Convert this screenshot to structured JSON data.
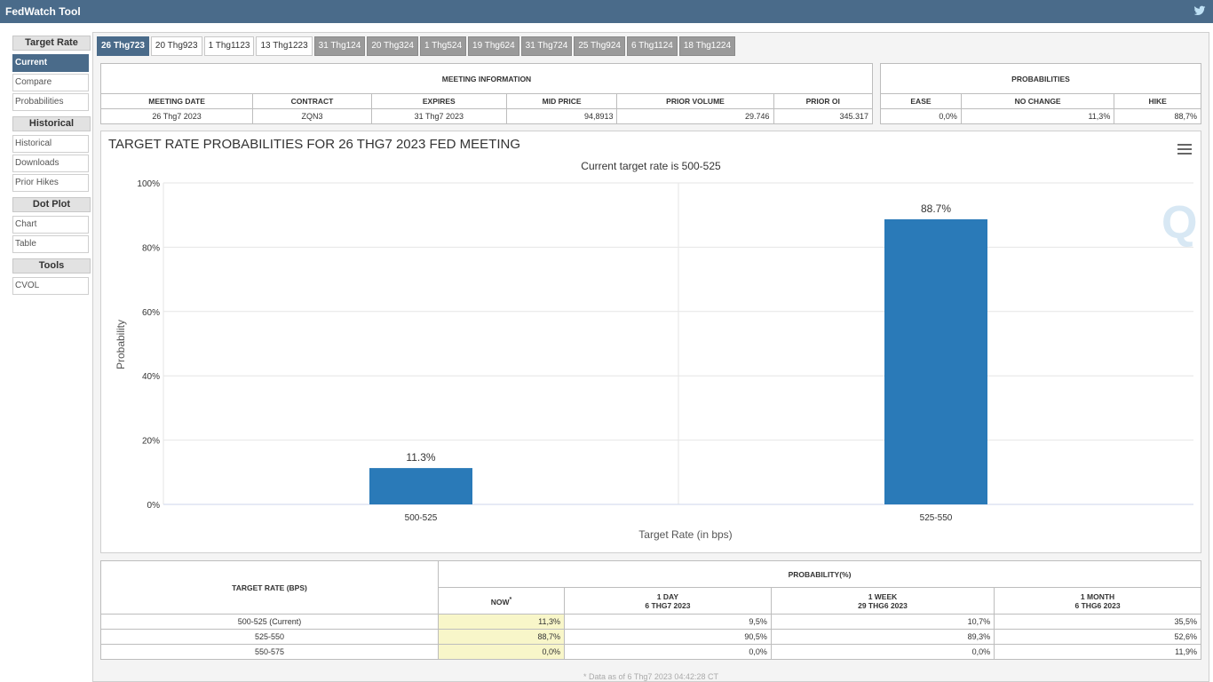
{
  "app": {
    "title": "FedWatch Tool"
  },
  "sidebar": {
    "sections": [
      {
        "heading": "Target Rate",
        "items": [
          "Current",
          "Compare",
          "Probabilities"
        ]
      },
      {
        "heading": "Historical",
        "items": [
          "Historical",
          "Downloads",
          "Prior Hikes"
        ]
      },
      {
        "heading": "Dot Plot",
        "items": [
          "Chart",
          "Table"
        ]
      },
      {
        "heading": "Tools",
        "items": [
          "CVOL"
        ]
      }
    ]
  },
  "tabs": [
    "26 Thg723",
    "20 Thg923",
    "1 Thg1123",
    "13 Thg1223",
    "31 Thg124",
    "20 Thg324",
    "1 Thg524",
    "19 Thg624",
    "31 Thg724",
    "25 Thg924",
    "6 Thg1124",
    "18 Thg1224"
  ],
  "meeting": {
    "heading": "MEETING INFORMATION",
    "cols": [
      "MEETING DATE",
      "CONTRACT",
      "EXPIRES",
      "MID PRICE",
      "PRIOR VOLUME",
      "PRIOR OI"
    ],
    "row": [
      "26 Thg7 2023",
      "ZQN3",
      "31 Thg7 2023",
      "94,8913",
      "29.746",
      "345.317"
    ]
  },
  "probabilities": {
    "heading": "PROBABILITIES",
    "cols": [
      "EASE",
      "NO CHANGE",
      "HIKE"
    ],
    "row": [
      "0,0%",
      "11,3%",
      "88,7%"
    ]
  },
  "chart": {
    "title": "TARGET RATE PROBABILITIES FOR 26 THG7 2023 FED MEETING",
    "subtitle": "Current target rate is 500-525",
    "watermark": "Q"
  },
  "chart_data": {
    "type": "bar",
    "categories": [
      "500-525",
      "525-550"
    ],
    "values": [
      11.3,
      88.7
    ],
    "data_labels": [
      "11.3%",
      "88.7%"
    ],
    "title": "TARGET RATE PROBABILITIES FOR 26 THG7 2023 FED MEETING",
    "subtitle": "Current target rate is 500-525",
    "xlabel": "Target Rate (in bps)",
    "ylabel": "Probability",
    "ylim": [
      0,
      100
    ],
    "yticks": [
      "0%",
      "20%",
      "40%",
      "60%",
      "80%",
      "100%"
    ],
    "grid": true,
    "color": "#2a7ab8"
  },
  "bottom": {
    "col_target": "TARGET RATE (BPS)",
    "col_prob": "PROBABILITY(%)",
    "sub": [
      {
        "l1": "NOW",
        "l2": ""
      },
      {
        "l1": "1 DAY",
        "l2": "6 THG7 2023"
      },
      {
        "l1": "1 WEEK",
        "l2": "29 THG6 2023"
      },
      {
        "l1": "1 MONTH",
        "l2": "6 THG6 2023"
      }
    ],
    "now_mark": "*",
    "rows": [
      [
        "500-525 (Current)",
        "11,3%",
        "9,5%",
        "10,7%",
        "35,5%"
      ],
      [
        "525-550",
        "88,7%",
        "90,5%",
        "89,3%",
        "52,6%"
      ],
      [
        "550-575",
        "0,0%",
        "0,0%",
        "0,0%",
        "11,9%"
      ]
    ],
    "note": "* Data as of 6 Thg7 2023 04:42:28 CT"
  }
}
